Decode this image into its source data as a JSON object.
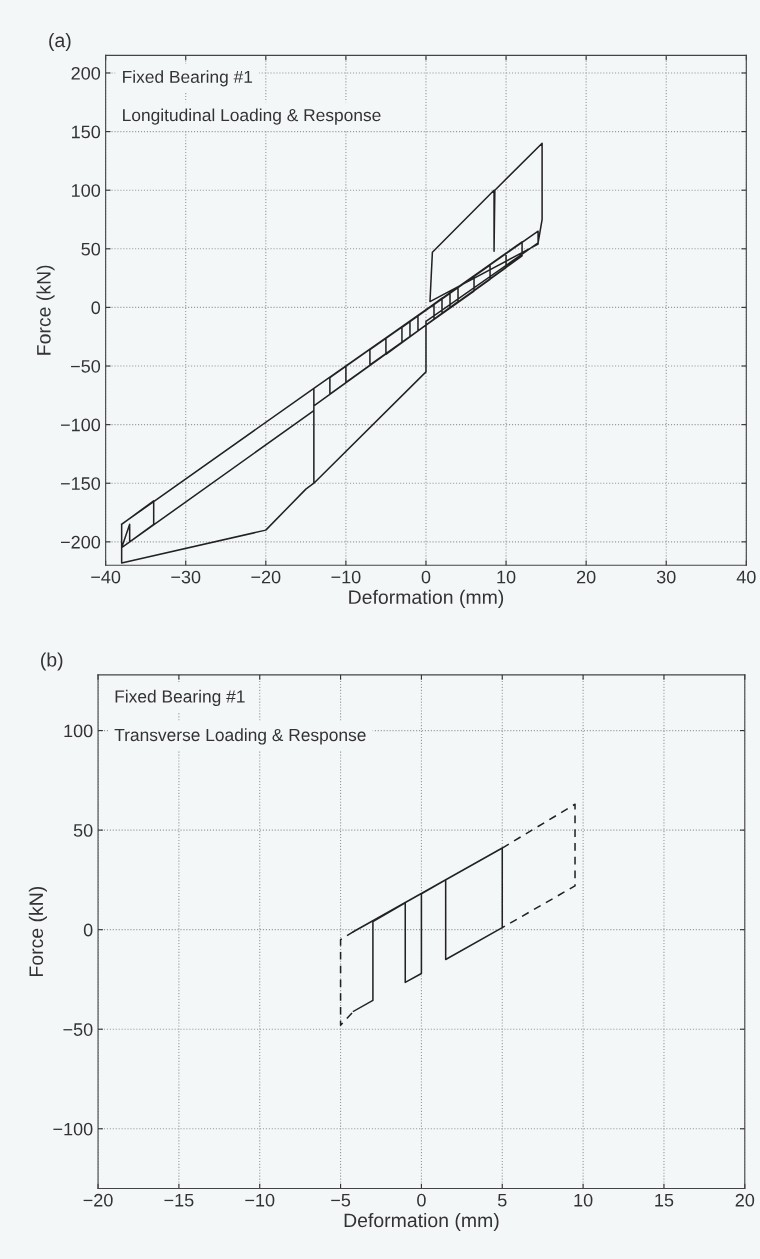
{
  "chart_data": [
    {
      "type": "line",
      "title": "(a)",
      "xlabel": "Deformation (mm)",
      "ylabel": "Force (kN)",
      "xlim": [
        -40,
        40
      ],
      "xticks": [
        -40,
        -30,
        -20,
        -10,
        0,
        10,
        20,
        30,
        40
      ],
      "ylim": [
        -220,
        215
      ],
      "yticks": [
        -200,
        -150,
        -100,
        -50,
        0,
        50,
        100,
        150,
        200
      ],
      "grid": true,
      "legend": false,
      "marker": "none",
      "annotations": [
        "Fixed Bearing #1",
        "Longitudinal Loading & Response"
      ],
      "series": [
        {
          "color": "#222222",
          "line_style": "solid",
          "x": [
            0,
            1,
            1,
            -1,
            -1,
            2,
            2,
            -2,
            -2,
            3,
            3,
            -3,
            -3,
            4,
            4,
            -5,
            -5,
            6,
            6,
            -7,
            -7,
            8,
            8,
            -10,
            -10,
            10,
            10,
            -12,
            -12,
            12,
            12,
            -14,
            -14,
            14,
            14,
            0.5,
            0.8,
            8.5,
            8.5,
            8.6,
            14.5,
            14.5,
            14,
            0,
            0,
            -14,
            -14,
            -14,
            -15,
            -20,
            -38,
            -38,
            -34,
            -34,
            -37,
            -37,
            -38,
            -14,
            -14,
            -38
          ],
          "values": [
            -2,
            2,
            -10,
            -20,
            -7,
            8,
            -5,
            -25,
            -12,
            12,
            0,
            -30,
            -17,
            17,
            5,
            -40,
            -26,
            27,
            14,
            -49,
            -36,
            36,
            24,
            -64,
            -50,
            46,
            34,
            -74,
            -60,
            56,
            44,
            -84,
            -69,
            65,
            54,
            5,
            47,
            100,
            48,
            100,
            140,
            75,
            55,
            -12,
            -55,
            -150,
            -88,
            -150,
            -155,
            -190,
            -218,
            -185,
            -165,
            -185,
            -200,
            -185,
            -205,
            -88,
            -69,
            -185
          ]
        }
      ]
    },
    {
      "type": "line",
      "title": "(b)",
      "xlabel": "Deformation (mm)",
      "ylabel": "Force (kN)",
      "xlim": [
        -20,
        20
      ],
      "xticks": [
        -20,
        -15,
        -10,
        -5,
        0,
        5,
        10,
        15,
        20
      ],
      "ylim": [
        -130,
        128
      ],
      "yticks": [
        -100,
        -50,
        0,
        50,
        100
      ],
      "grid": true,
      "legend": false,
      "marker": "none",
      "annotations": [
        "Fixed Bearing #1",
        "Transverse Loading & Response"
      ],
      "series": [
        {
          "color": "#222222",
          "line_style": "solid",
          "x": [
            -4.2,
            -3,
            -3,
            -1,
            -1,
            0,
            0,
            1.5,
            1.5,
            5,
            5,
            -4.2
          ],
          "values": [
            -41,
            -35.5,
            4,
            13.5,
            -26.5,
            -22,
            18,
            25,
            -15,
            1,
            41,
            -1
          ]
        },
        {
          "color": "#222222",
          "line_style": "dashed",
          "x": [
            -4.2,
            -5,
            -5,
            -4.2,
            0,
            5,
            9.5,
            9.5,
            5
          ],
          "values": [
            -1,
            -5,
            -48,
            -41,
            null,
            41,
            63,
            22,
            1
          ]
        }
      ]
    }
  ]
}
